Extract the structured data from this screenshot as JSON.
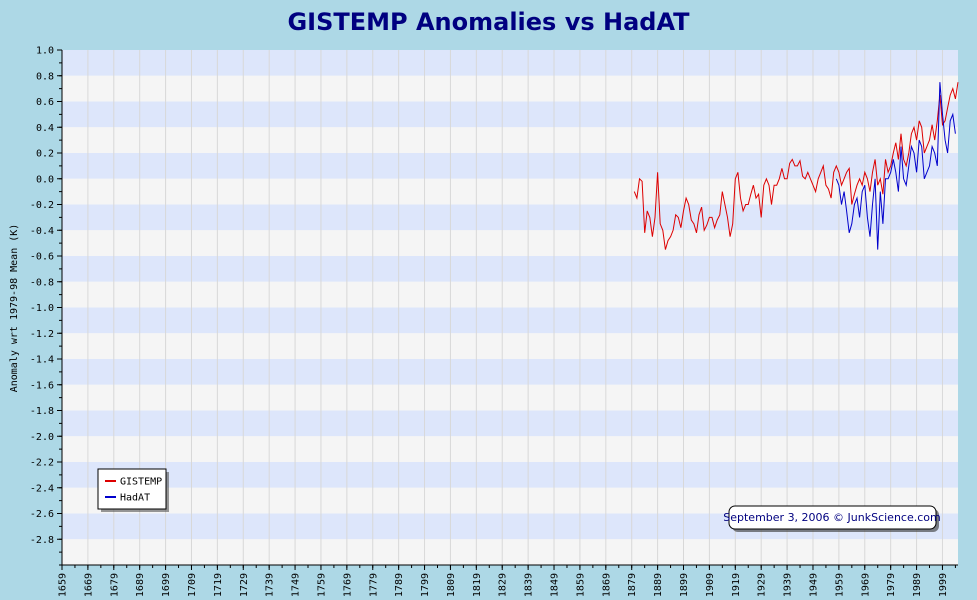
{
  "chart_data": {
    "type": "line",
    "title": "GISTEMP Anomalies vs HadAT",
    "ylabel": "Anomaly wrt 1979-98 Mean (K)",
    "xlabel": "",
    "xlim": [
      1659,
      2005
    ],
    "ylim": [
      -3.0,
      1.0
    ],
    "y_ticks": [
      "1.0",
      "0.8",
      "0.6",
      "0.4",
      "0.2",
      "0.0",
      "-0.2",
      "-0.4",
      "-0.6",
      "-0.8",
      "-1.0",
      "-1.2",
      "-1.4",
      "-1.6",
      "-1.8",
      "-2.0",
      "-2.2",
      "-2.4",
      "-2.6",
      "-2.8"
    ],
    "x_ticks": [
      "1659",
      "1669",
      "1679",
      "1689",
      "1699",
      "1709",
      "1719",
      "1729",
      "1739",
      "1749",
      "1759",
      "1769",
      "1779",
      "1789",
      "1799",
      "1809",
      "1819",
      "1829",
      "1839",
      "1849",
      "1859",
      "1869",
      "1879",
      "1889",
      "1899",
      "1909",
      "1919",
      "1929",
      "1939",
      "1949",
      "1959",
      "1969",
      "1979",
      "1989",
      "1999"
    ],
    "grid": true,
    "legend_position": "bottom-left",
    "series": [
      {
        "name": "GISTEMP",
        "color": "#dd0000",
        "x": [
          1880,
          1881,
          1882,
          1883,
          1884,
          1885,
          1886,
          1887,
          1888,
          1889,
          1890,
          1891,
          1892,
          1893,
          1894,
          1895,
          1896,
          1897,
          1898,
          1899,
          1900,
          1901,
          1902,
          1903,
          1904,
          1905,
          1906,
          1907,
          1908,
          1909,
          1910,
          1911,
          1912,
          1913,
          1914,
          1915,
          1916,
          1917,
          1918,
          1919,
          1920,
          1921,
          1922,
          1923,
          1924,
          1925,
          1926,
          1927,
          1928,
          1929,
          1930,
          1931,
          1932,
          1933,
          1934,
          1935,
          1936,
          1937,
          1938,
          1939,
          1940,
          1941,
          1942,
          1943,
          1944,
          1945,
          1946,
          1947,
          1948,
          1949,
          1950,
          1951,
          1952,
          1953,
          1954,
          1955,
          1956,
          1957,
          1958,
          1959,
          1960,
          1961,
          1962,
          1963,
          1964,
          1965,
          1966,
          1967,
          1968,
          1969,
          1970,
          1971,
          1972,
          1973,
          1974,
          1975,
          1976,
          1977,
          1978,
          1979,
          1980,
          1981,
          1982,
          1983,
          1984,
          1985,
          1986,
          1987,
          1988,
          1989,
          1990,
          1991,
          1992,
          1993,
          1994,
          1995,
          1996,
          1997,
          1998,
          1999,
          2000,
          2001,
          2002,
          2003,
          2004,
          2005
        ],
        "values": [
          -0.1,
          -0.15,
          0.0,
          -0.02,
          -0.42,
          -0.25,
          -0.3,
          -0.45,
          -0.3,
          0.05,
          -0.35,
          -0.4,
          -0.55,
          -0.48,
          -0.45,
          -0.4,
          -0.28,
          -0.3,
          -0.38,
          -0.25,
          -0.15,
          -0.2,
          -0.32,
          -0.35,
          -0.42,
          -0.28,
          -0.22,
          -0.4,
          -0.36,
          -0.3,
          -0.3,
          -0.38,
          -0.32,
          -0.28,
          -0.1,
          -0.2,
          -0.3,
          -0.45,
          -0.35,
          0.0,
          0.05,
          -0.15,
          -0.25,
          -0.2,
          -0.2,
          -0.12,
          -0.05,
          -0.15,
          -0.12,
          -0.3,
          -0.05,
          0.0,
          -0.05,
          -0.2,
          -0.05,
          -0.05,
          0.0,
          0.08,
          0.0,
          0.0,
          0.12,
          0.15,
          0.1,
          0.1,
          0.14,
          0.02,
          0.0,
          0.05,
          0.0,
          -0.05,
          -0.1,
          0.0,
          0.05,
          0.1,
          -0.05,
          -0.08,
          -0.15,
          0.05,
          0.1,
          0.05,
          -0.05,
          0.0,
          0.05,
          0.08,
          -0.2,
          -0.12,
          -0.05,
          0.0,
          -0.05,
          0.05,
          0.0,
          -0.1,
          0.05,
          0.15,
          -0.05,
          0.0,
          -0.12,
          0.15,
          0.05,
          0.1,
          0.2,
          0.28,
          0.15,
          0.35,
          0.15,
          0.1,
          0.2,
          0.35,
          0.4,
          0.3,
          0.45,
          0.4,
          0.2,
          0.25,
          0.3,
          0.42,
          0.3,
          0.45,
          0.65,
          0.42,
          0.45,
          0.55,
          0.65,
          0.7,
          0.62,
          0.75
        ]
      },
      {
        "name": "HadAT",
        "color": "#0000cc",
        "x": [
          1958,
          1959,
          1960,
          1961,
          1962,
          1963,
          1964,
          1965,
          1966,
          1967,
          1968,
          1969,
          1970,
          1971,
          1972,
          1973,
          1974,
          1975,
          1976,
          1977,
          1978,
          1979,
          1980,
          1981,
          1982,
          1983,
          1984,
          1985,
          1986,
          1987,
          1988,
          1989,
          1990,
          1991,
          1992,
          1993,
          1994,
          1995,
          1996,
          1997,
          1998,
          1999,
          2000,
          2001,
          2002,
          2003,
          2004
        ],
        "values": [
          0.0,
          -0.05,
          -0.2,
          -0.1,
          -0.25,
          -0.42,
          -0.35,
          -0.2,
          -0.15,
          -0.3,
          -0.1,
          -0.05,
          -0.3,
          -0.45,
          -0.2,
          0.0,
          -0.55,
          -0.1,
          -0.35,
          0.0,
          0.0,
          0.05,
          0.15,
          0.05,
          -0.1,
          0.25,
          0.0,
          -0.05,
          0.1,
          0.25,
          0.2,
          0.05,
          0.3,
          0.25,
          0.0,
          0.05,
          0.1,
          0.25,
          0.2,
          0.1,
          0.75,
          0.5,
          0.3,
          0.2,
          0.45,
          0.5,
          0.35
        ]
      }
    ]
  },
  "credit": "September 3, 2006 © JunkScience.com"
}
